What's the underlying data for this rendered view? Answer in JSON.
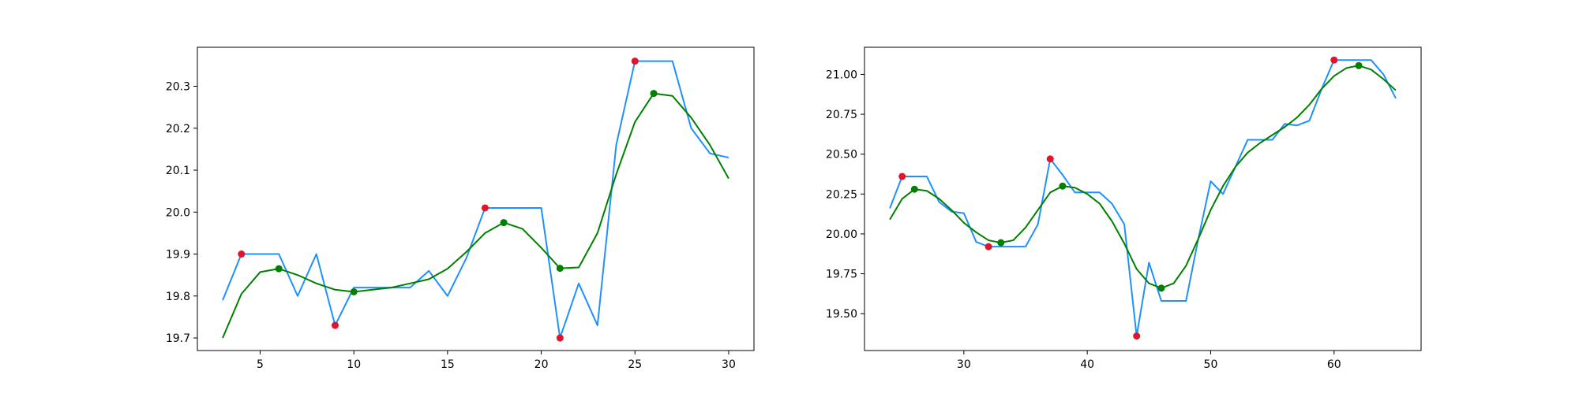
{
  "chart_data": [
    {
      "type": "line",
      "xlim": [
        1.65,
        31.35
      ],
      "ylim": [
        19.67,
        20.393
      ],
      "xticks": [
        5,
        10,
        15,
        20,
        25,
        30
      ],
      "yticks": [
        19.7,
        19.8,
        19.9,
        20.0,
        20.1,
        20.2,
        20.3
      ],
      "xtick_labels": [
        "5",
        "10",
        "15",
        "20",
        "25",
        "30"
      ],
      "ytick_labels": [
        "19.7",
        "19.8",
        "19.9",
        "20.0",
        "20.1",
        "20.2",
        "20.3"
      ],
      "series": [
        {
          "color": "#1e90ff",
          "style": "line",
          "x": [
            3,
            4,
            5,
            6,
            7,
            8,
            9,
            10,
            11,
            12,
            13,
            14,
            15,
            16,
            17,
            18,
            19,
            20,
            21,
            22,
            23,
            24,
            25,
            26,
            27,
            28,
            29,
            30
          ],
          "y": [
            19.79,
            19.9,
            19.9,
            19.9,
            19.8,
            19.9,
            19.73,
            19.82,
            19.82,
            19.82,
            19.82,
            19.86,
            19.8,
            19.89,
            20.01,
            20.01,
            20.01,
            20.01,
            19.7,
            19.83,
            19.73,
            20.16,
            20.36,
            20.36,
            20.36,
            20.2,
            20.14,
            20.13
          ]
        },
        {
          "color": "#008000",
          "style": "line",
          "x": [
            3,
            4,
            5,
            6,
            7,
            8,
            9,
            10,
            11,
            12,
            13,
            14,
            15,
            16,
            17,
            18,
            19,
            20,
            21,
            22,
            23,
            24,
            25,
            26,
            27,
            28,
            29,
            30
          ],
          "y": [
            19.7,
            19.805,
            19.857,
            19.865,
            19.85,
            19.83,
            19.815,
            19.81,
            19.815,
            19.82,
            19.83,
            19.84,
            19.865,
            19.905,
            19.95,
            19.975,
            19.96,
            19.915,
            19.866,
            19.868,
            19.95,
            20.09,
            20.215,
            20.283,
            20.277,
            20.225,
            20.16,
            20.08
          ]
        },
        {
          "color": "#e0142a",
          "style": "markers",
          "x": [
            4,
            9,
            17,
            21,
            25
          ],
          "y": [
            19.9,
            19.73,
            20.01,
            19.7,
            20.36
          ]
        },
        {
          "color": "#008000",
          "style": "markers",
          "x": [
            6,
            10,
            18,
            21,
            26
          ],
          "y": [
            19.865,
            19.81,
            19.975,
            19.866,
            20.283
          ]
        }
      ]
    },
    {
      "type": "line",
      "xlim": [
        21.95,
        67.05
      ],
      "ylim": [
        19.269,
        21.17
      ],
      "xticks": [
        30,
        40,
        50,
        60
      ],
      "yticks": [
        19.5,
        19.75,
        20.0,
        20.25,
        20.5,
        20.75,
        21.0
      ],
      "xtick_labels": [
        "30",
        "40",
        "50",
        "60"
      ],
      "ytick_labels": [
        "19.50",
        "19.75",
        "20.00",
        "20.25",
        "20.50",
        "20.75",
        "21.00"
      ],
      "series": [
        {
          "color": "#1e90ff",
          "style": "line",
          "x": [
            24,
            25,
            26,
            27,
            28,
            29,
            30,
            31,
            32,
            33,
            34,
            35,
            36,
            37,
            38,
            39,
            40,
            41,
            42,
            43,
            44,
            45,
            46,
            47,
            48,
            49,
            50,
            51,
            52,
            53,
            54,
            55,
            56,
            57,
            58,
            59,
            60,
            61,
            62,
            63,
            64,
            65
          ],
          "y": [
            20.16,
            20.36,
            20.36,
            20.36,
            20.2,
            20.14,
            20.13,
            19.95,
            19.92,
            19.92,
            19.92,
            19.92,
            20.06,
            20.47,
            20.37,
            20.26,
            20.26,
            20.26,
            20.19,
            20.06,
            19.36,
            19.82,
            19.58,
            19.58,
            19.58,
            19.97,
            20.33,
            20.25,
            20.42,
            20.59,
            20.59,
            20.59,
            20.69,
            20.68,
            20.71,
            20.91,
            21.09,
            21.09,
            21.09,
            21.09,
            21.0,
            20.85
          ]
        },
        {
          "color": "#008000",
          "style": "line",
          "x": [
            24,
            25,
            26,
            27,
            28,
            29,
            30,
            31,
            32,
            33,
            34,
            35,
            36,
            37,
            38,
            39,
            40,
            41,
            42,
            43,
            44,
            45,
            46,
            47,
            48,
            49,
            50,
            51,
            52,
            53,
            54,
            55,
            56,
            57,
            58,
            59,
            60,
            61,
            62,
            63,
            64,
            65
          ],
          "y": [
            20.09,
            20.22,
            20.28,
            20.27,
            20.22,
            20.15,
            20.07,
            20.01,
            19.96,
            19.945,
            19.96,
            20.04,
            20.15,
            20.26,
            20.3,
            20.29,
            20.25,
            20.19,
            20.08,
            19.94,
            19.78,
            19.69,
            19.66,
            19.69,
            19.8,
            19.97,
            20.15,
            20.3,
            20.42,
            20.51,
            20.57,
            20.62,
            20.67,
            20.73,
            20.81,
            20.91,
            20.99,
            21.04,
            21.055,
            21.03,
            20.97,
            20.9
          ]
        },
        {
          "color": "#e0142a",
          "style": "markers",
          "x": [
            25,
            32,
            37,
            44,
            60
          ],
          "y": [
            20.36,
            19.92,
            20.47,
            19.36,
            21.09
          ]
        },
        {
          "color": "#008000",
          "style": "markers",
          "x": [
            26,
            33,
            38,
            46,
            62
          ],
          "y": [
            20.28,
            19.945,
            20.3,
            19.66,
            21.055
          ]
        }
      ]
    }
  ]
}
